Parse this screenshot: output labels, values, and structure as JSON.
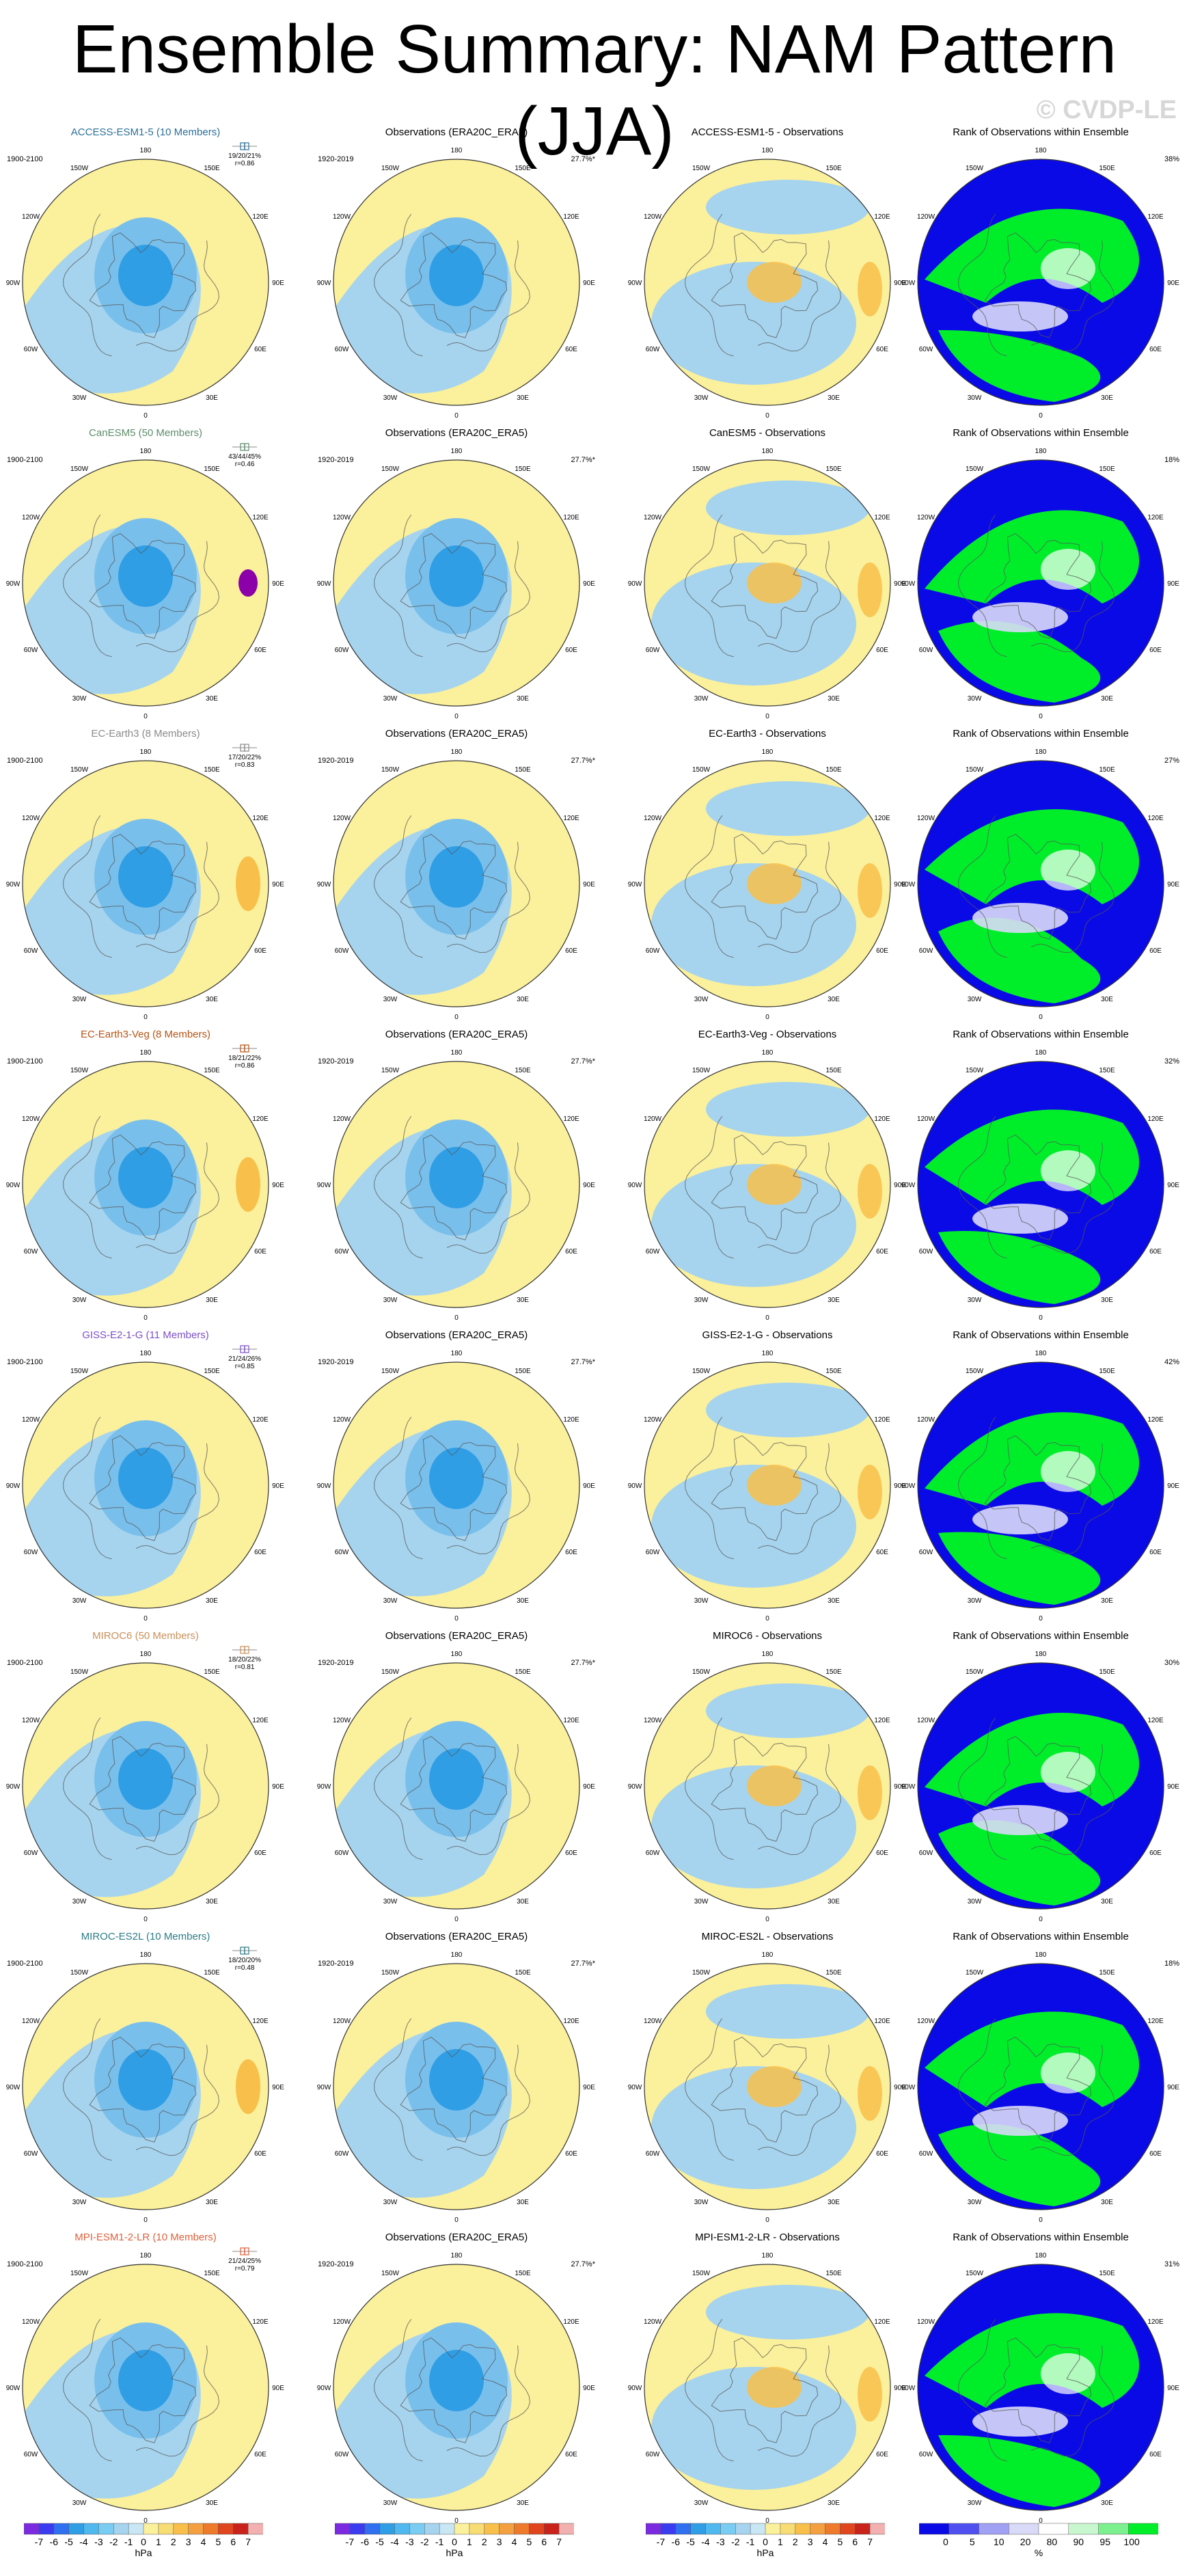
{
  "title": "Ensemble Summary: NAM Pattern (JJA)",
  "watermark": "© CVDP-LE",
  "colors": {
    "ocean_light_blue": "#a6d4ee",
    "land_yellow": "#fbf09b",
    "blue_mid": "#79bfeb",
    "blue_dark": "#2f9ee5",
    "orange": "#f8c04a",
    "purple": "#8b00a8",
    "rank_green": "#00ee2a",
    "rank_blue": "#0a0ae6",
    "rank_lavender": "#d9d9f8"
  },
  "lon_labels": [
    "180",
    "150E",
    "120E",
    "90E",
    "60E",
    "30E",
    "0",
    "30W",
    "60W",
    "90W",
    "120W",
    "150W"
  ],
  "obs_title": "Observations (ERA20C_ERA5)",
  "obs_period": "1920-2019",
  "obs_pct": "27.7%*",
  "rank_title": "Rank of Observations within Ensemble",
  "model_period": "1900-2100",
  "rows": [
    {
      "model_title": "ACCESS-ESM1-5 (10 Members)",
      "color": "#2b6f9a",
      "stats1": "19/20/21%",
      "stats2": "r=0.86",
      "diff_title": "ACCESS-ESM1-5 - Observations",
      "rank_pct": "38%"
    },
    {
      "model_title": "CanESM5 (50 Members)",
      "color": "#5d8c6b",
      "stats1": "43/44/45%",
      "stats2": "r=0.46",
      "diff_title": "CanESM5 - Observations",
      "rank_pct": "18%"
    },
    {
      "model_title": "EC-Earth3 (8 Members)",
      "color": "#8a8a8a",
      "stats1": "17/20/22%",
      "stats2": "r=0.83",
      "diff_title": "EC-Earth3 - Observations",
      "rank_pct": "27%"
    },
    {
      "model_title": "EC-Earth3-Veg (8 Members)",
      "color": "#b65414",
      "stats1": "18/21/22%",
      "stats2": "r=0.86",
      "diff_title": "EC-Earth3-Veg - Observations",
      "rank_pct": "32%"
    },
    {
      "model_title": "GISS-E2-1-G (11 Members)",
      "color": "#7b4fc8",
      "stats1": "21/24/26%",
      "stats2": "r=0.85",
      "diff_title": "GISS-E2-1-G - Observations",
      "rank_pct": "42%"
    },
    {
      "model_title": "MIROC6 (50 Members)",
      "color": "#c9905a",
      "stats1": "18/20/22%",
      "stats2": "r=0.81",
      "diff_title": "MIROC6 - Observations",
      "rank_pct": "30%"
    },
    {
      "model_title": "MIROC-ES2L (10 Members)",
      "color": "#2c7d86",
      "stats1": "18/20/20%",
      "stats2": "r=0.48",
      "diff_title": "MIROC-ES2L - Observations",
      "rank_pct": "18%"
    },
    {
      "model_title": "MPI-ESM1-2-LR (10 Members)",
      "color": "#e0603a",
      "stats1": "21/24/25%",
      "stats2": "r=0.79",
      "diff_title": "MPI-ESM1-2-LR - Observations",
      "rank_pct": "31%"
    }
  ],
  "colorbar_hpa": {
    "labels": [
      "-7",
      "-6",
      "-5",
      "-4",
      "-3",
      "-2",
      "-1",
      "0",
      "1",
      "2",
      "3",
      "4",
      "5",
      "6",
      "7"
    ],
    "unit": "hPa",
    "colors": [
      "#7b2ae0",
      "#3b3bf0",
      "#2f6ff0",
      "#2f9ee5",
      "#4fb8ee",
      "#79cdf3",
      "#a6d4ee",
      "#c9e6f5",
      "#fbf09b",
      "#f8dc74",
      "#f8c04a",
      "#f4a040",
      "#ee7a2c",
      "#e0451e",
      "#c8221a",
      "#f3b0b0"
    ]
  },
  "colorbar_rank": {
    "labels": [
      "0",
      "5",
      "10",
      "20",
      "80",
      "90",
      "95",
      "100"
    ],
    "unit": "%",
    "colors": [
      "#0a0ae6",
      "#5050f0",
      "#a0a0f4",
      "#d9d9f8",
      "#ffffff",
      "#c8f7cf",
      "#7cf08e",
      "#00ee2a"
    ]
  }
}
